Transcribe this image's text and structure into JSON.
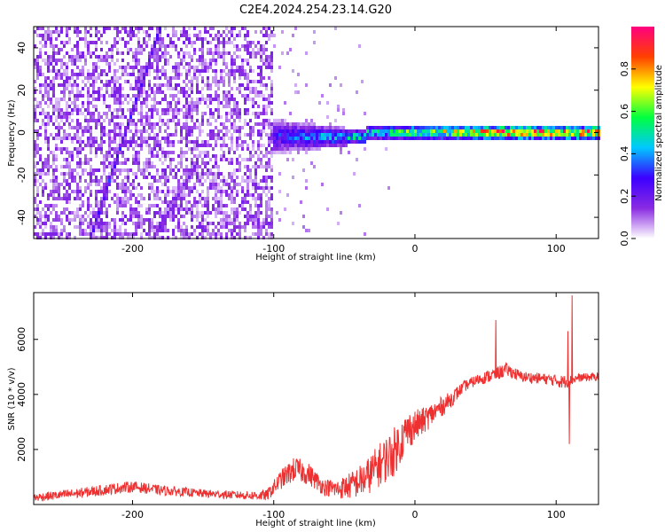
{
  "title": "C2E4.2024.254.23.14.G20",
  "chart_data": [
    {
      "type": "heatmap",
      "name": "spectrogram",
      "title": "C2E4.2024.254.23.14.G20",
      "xlabel": "Height of straight line (km)",
      "ylabel": "Frequency (Hz)",
      "xlim": [
        -270,
        130
      ],
      "ylim": [
        -50,
        50
      ],
      "x_ticks": [
        -200,
        -100,
        0,
        100
      ],
      "x_tick_labels": [
        "-200",
        "-100",
        "0",
        "100"
      ],
      "y_ticks": [
        -40,
        -20,
        0,
        20,
        40
      ],
      "y_tick_labels": [
        "-40",
        "-20",
        "0",
        "20",
        "40"
      ],
      "colorbar": {
        "label": "Normalized spectral amplitude",
        "range": [
          0,
          1
        ],
        "ticks": [
          0,
          0.2,
          0.4,
          0.6,
          0.8
        ],
        "tick_labels": [
          "0.0",
          "0.2",
          "0.4",
          "0.6",
          "0.8"
        ],
        "colormap": [
          "#ffffff",
          "#8a2be2",
          "#3c00ff",
          "#00c8ff",
          "#00ff40",
          "#ffff00",
          "#ff4000",
          "#ff0080"
        ]
      },
      "features": [
        {
          "name": "noise-region",
          "x_range": [
            -270,
            -100
          ],
          "amplitude": 0.12
        },
        {
          "name": "diagonal-trace-1",
          "x": [
            -230,
            -180
          ],
          "y": [
            -50,
            50
          ],
          "amplitude": 0.28
        },
        {
          "name": "diagonal-trace-2",
          "x": [
            -185,
            -155
          ],
          "y": [
            -50,
            -15
          ],
          "amplitude": 0.18
        },
        {
          "name": "carrier-line",
          "x_range": [
            -105,
            130
          ],
          "y": 0,
          "amplitude_start": 0.3,
          "amplitude_end": 0.95
        }
      ]
    },
    {
      "type": "line",
      "name": "snr",
      "xlabel": "Height of straight line (km)",
      "ylabel": "SNR (10 * v/v)",
      "xlim": [
        -270,
        130
      ],
      "ylim": [
        0,
        7700
      ],
      "x_ticks": [
        -200,
        -100,
        0,
        100
      ],
      "x_tick_labels": [
        "-200",
        "-100",
        "0",
        "100"
      ],
      "y_ticks": [
        2000,
        4000,
        6000
      ],
      "y_tick_labels": [
        "2000",
        "4000",
        "6000"
      ],
      "color": "#ee3030",
      "series": [
        {
          "name": "SNR envelope",
          "x": [
            -270,
            -240,
            -210,
            -200,
            -180,
            -150,
            -120,
            -105,
            -95,
            -85,
            -75,
            -65,
            -55,
            -45,
            -35,
            -25,
            -15,
            -5,
            5,
            15,
            25,
            35,
            45,
            55,
            65,
            75,
            85,
            95,
            105,
            110,
            115,
            130
          ],
          "y": [
            250,
            400,
            600,
            650,
            520,
            400,
            330,
            330,
            900,
            1300,
            1100,
            650,
            550,
            700,
            950,
            1450,
            1900,
            2700,
            3000,
            3400,
            3800,
            4300,
            4550,
            4700,
            4900,
            4650,
            4600,
            4550,
            4450,
            4500,
            4600,
            4650
          ],
          "noise": [
            150,
            180,
            200,
            200,
            180,
            150,
            150,
            200,
            350,
            450,
            400,
            300,
            350,
            500,
            650,
            800,
            900,
            700,
            500,
            400,
            300,
            200,
            200,
            250,
            250,
            200,
            200,
            200,
            250,
            200,
            150,
            150
          ]
        }
      ],
      "spikes": [
        {
          "x": 57,
          "y": 6700
        },
        {
          "x": 108,
          "y": 6300
        },
        {
          "x": 109,
          "y": 2200
        },
        {
          "x": 111,
          "y": 7600
        }
      ]
    }
  ]
}
